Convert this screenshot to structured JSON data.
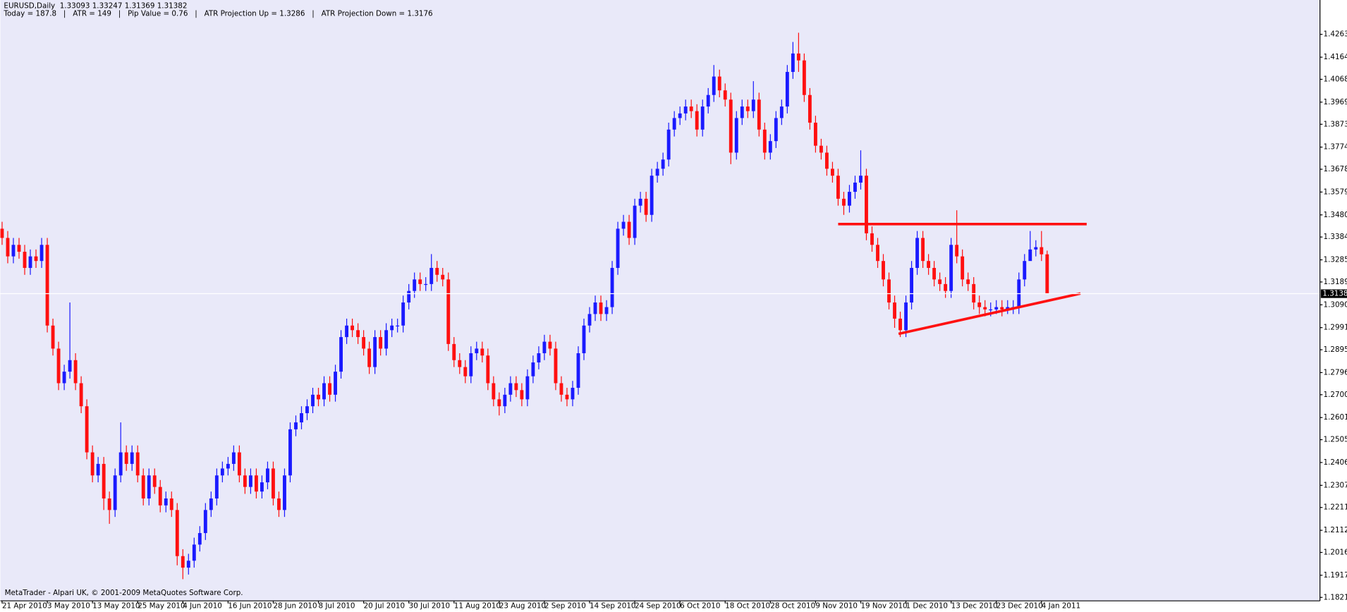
{
  "chart_data": {
    "type": "candlestick",
    "header": [
      "EURUSD,Daily  1.33093 1.33247 1.31369 1.31382",
      "Today = 187.8   |   ATR = 149   |   Pip Value = 0.76   |   ATR Projection Up = 1.3286   |   ATR Projection Down = 1.3176"
    ],
    "footer": "MetaTrader - Alpari UK, © 2001-2009 MetaQuotes Software Corp.",
    "up_color": "#1a1aff",
    "down_color": "#ff1010",
    "background": "#e9e9f9",
    "xlim": [
      -0.3,
      233.3
    ],
    "ylim": [
      1.1806,
      1.4412
    ],
    "yticks": [
      {
        "value": 1.4263,
        "label": "1.42630"
      },
      {
        "value": 1.4164,
        "label": "1.41640"
      },
      {
        "value": 1.4068,
        "label": "1.40680"
      },
      {
        "value": 1.3969,
        "label": "1.39690"
      },
      {
        "value": 1.3873,
        "label": "1.38730"
      },
      {
        "value": 1.3774,
        "label": "1.37740"
      },
      {
        "value": 1.3678,
        "label": "1.36780"
      },
      {
        "value": 1.3579,
        "label": "1.35790"
      },
      {
        "value": 1.348,
        "label": "1.34800"
      },
      {
        "value": 1.3384,
        "label": "1.33840"
      },
      {
        "value": 1.3285,
        "label": "1.32850"
      },
      {
        "value": 1.3189,
        "label": "1.31890"
      },
      {
        "value": 1.309,
        "label": "1.30900"
      },
      {
        "value": 1.2991,
        "label": "1.29910"
      },
      {
        "value": 1.2895,
        "label": "1.28950"
      },
      {
        "value": 1.2796,
        "label": "1.27960"
      },
      {
        "value": 1.27,
        "label": "1.27000"
      },
      {
        "value": 1.2601,
        "label": "1.26010"
      },
      {
        "value": 1.2505,
        "label": "1.25050"
      },
      {
        "value": 1.2406,
        "label": "1.24060"
      },
      {
        "value": 1.2307,
        "label": "1.23070"
      },
      {
        "value": 1.2211,
        "label": "1.22110"
      },
      {
        "value": 1.2112,
        "label": "1.21120"
      },
      {
        "value": 1.2016,
        "label": "1.20160"
      },
      {
        "value": 1.1917,
        "label": "1.19170"
      },
      {
        "value": 1.1821,
        "label": "1.18210"
      }
    ],
    "last_price": {
      "value": 1.31382,
      "label": "1.31382",
      "color": "#000000"
    },
    "trendlines": [
      {
        "color": "#ff1010",
        "x": [
          148,
          192
        ],
        "y": [
          1.344,
          1.344
        ]
      },
      {
        "color": "#ff1010",
        "x": [
          158.7,
          190.9
        ],
        "y": [
          1.2964,
          1.3139
        ]
      }
    ],
    "categories": [
      "21 Apr 2010",
      null,
      null,
      null,
      null,
      null,
      null,
      null,
      "3 May 2010",
      null,
      null,
      null,
      null,
      null,
      null,
      null,
      "13 May 2010",
      null,
      null,
      null,
      null,
      null,
      null,
      null,
      "25 May 2010",
      null,
      null,
      null,
      null,
      null,
      null,
      null,
      "4 Jun 2010",
      null,
      null,
      null,
      null,
      null,
      null,
      null,
      "16 Jun 2010",
      null,
      null,
      null,
      null,
      null,
      null,
      null,
      "28 Jun 2010",
      null,
      null,
      null,
      null,
      null,
      null,
      null,
      "8 Jul 2010",
      null,
      null,
      null,
      null,
      null,
      null,
      null,
      "20 Jul 2010",
      null,
      null,
      null,
      null,
      null,
      null,
      null,
      "30 Jul 2010",
      null,
      null,
      null,
      null,
      null,
      null,
      null,
      "11 Aug 2010",
      null,
      null,
      null,
      null,
      null,
      null,
      null,
      "23 Aug 2010",
      null,
      null,
      null,
      null,
      null,
      null,
      null,
      "2 Sep 2010",
      null,
      null,
      null,
      null,
      null,
      null,
      null,
      "14 Sep 2010",
      null,
      null,
      null,
      null,
      null,
      null,
      null,
      "24 Sep 2010",
      null,
      null,
      null,
      null,
      null,
      null,
      null,
      "6 Oct 2010",
      null,
      null,
      null,
      null,
      null,
      null,
      null,
      "18 Oct 2010",
      null,
      null,
      null,
      null,
      null,
      null,
      null,
      "28 Oct 2010",
      null,
      null,
      null,
      null,
      null,
      null,
      null,
      "9 Nov 2010",
      null,
      null,
      null,
      null,
      null,
      null,
      null,
      "19 Nov 2010",
      null,
      null,
      null,
      null,
      null,
      null,
      null,
      "1 Dec 2010",
      null,
      null,
      null,
      null,
      null,
      null,
      null,
      "13 Dec 2010",
      null,
      null,
      null,
      null,
      null,
      null,
      null,
      "23 Dec 2010",
      null,
      null,
      null,
      null,
      null,
      null,
      null,
      "4 Jan 2011",
      null
    ],
    "ohlc": [
      [
        1.342,
        1.345,
        1.335,
        1.338
      ],
      [
        1.338,
        1.341,
        1.327,
        1.33
      ],
      [
        1.33,
        1.338,
        1.327,
        1.335
      ],
      [
        1.335,
        1.338,
        1.329,
        1.332
      ],
      [
        1.332,
        1.335,
        1.322,
        1.325
      ],
      [
        1.325,
        1.333,
        1.322,
        1.33
      ],
      [
        1.33,
        1.333,
        1.325,
        1.328
      ],
      [
        1.328,
        1.338,
        1.325,
        1.335
      ],
      [
        1.335,
        1.338,
        1.297,
        1.3
      ],
      [
        1.3,
        1.303,
        1.287,
        1.29
      ],
      [
        1.29,
        1.293,
        1.272,
        1.275
      ],
      [
        1.275,
        1.283,
        1.272,
        1.28
      ],
      [
        1.28,
        1.31,
        1.277,
        1.285
      ],
      [
        1.285,
        1.288,
        1.272,
        1.275
      ],
      [
        1.275,
        1.278,
        1.262,
        1.265
      ],
      [
        1.265,
        1.268,
        1.242,
        1.245
      ],
      [
        1.245,
        1.248,
        1.232,
        1.235
      ],
      [
        1.235,
        1.243,
        1.232,
        1.24
      ],
      [
        1.24,
        1.243,
        1.22,
        1.225
      ],
      [
        1.225,
        1.228,
        1.214,
        1.22
      ],
      [
        1.22,
        1.238,
        1.217,
        1.235
      ],
      [
        1.235,
        1.258,
        1.232,
        1.245
      ],
      [
        1.245,
        1.248,
        1.237,
        1.24
      ],
      [
        1.24,
        1.248,
        1.237,
        1.245
      ],
      [
        1.245,
        1.248,
        1.232,
        1.235
      ],
      [
        1.235,
        1.238,
        1.222,
        1.225
      ],
      [
        1.225,
        1.238,
        1.222,
        1.235
      ],
      [
        1.235,
        1.238,
        1.227,
        1.23
      ],
      [
        1.23,
        1.233,
        1.219,
        1.222
      ],
      [
        1.222,
        1.228,
        1.219,
        1.225
      ],
      [
        1.225,
        1.228,
        1.217,
        1.22
      ],
      [
        1.22,
        1.223,
        1.196,
        1.2
      ],
      [
        1.2,
        1.203,
        1.19,
        1.195
      ],
      [
        1.195,
        1.201,
        1.192,
        1.198
      ],
      [
        1.198,
        1.208,
        1.195,
        1.205
      ],
      [
        1.205,
        1.213,
        1.202,
        1.21
      ],
      [
        1.21,
        1.223,
        1.207,
        1.22
      ],
      [
        1.22,
        1.228,
        1.217,
        1.225
      ],
      [
        1.225,
        1.238,
        1.222,
        1.235
      ],
      [
        1.235,
        1.241,
        1.232,
        1.238
      ],
      [
        1.238,
        1.243,
        1.235,
        1.24
      ],
      [
        1.24,
        1.248,
        1.237,
        1.245
      ],
      [
        1.245,
        1.248,
        1.232,
        1.235
      ],
      [
        1.235,
        1.238,
        1.227,
        1.23
      ],
      [
        1.23,
        1.238,
        1.227,
        1.235
      ],
      [
        1.235,
        1.238,
        1.225,
        1.228
      ],
      [
        1.228,
        1.235,
        1.225,
        1.232
      ],
      [
        1.232,
        1.241,
        1.229,
        1.238
      ],
      [
        1.238,
        1.241,
        1.222,
        1.225
      ],
      [
        1.225,
        1.228,
        1.217,
        1.22
      ],
      [
        1.22,
        1.238,
        1.217,
        1.235
      ],
      [
        1.235,
        1.258,
        1.232,
        1.255
      ],
      [
        1.255,
        1.261,
        1.252,
        1.258
      ],
      [
        1.258,
        1.265,
        1.255,
        1.262
      ],
      [
        1.262,
        1.268,
        1.259,
        1.265
      ],
      [
        1.265,
        1.273,
        1.262,
        1.27
      ],
      [
        1.27,
        1.273,
        1.265,
        1.268
      ],
      [
        1.268,
        1.278,
        1.265,
        1.275
      ],
      [
        1.275,
        1.278,
        1.267,
        1.27
      ],
      [
        1.27,
        1.283,
        1.267,
        1.28
      ],
      [
        1.28,
        1.298,
        1.277,
        1.295
      ],
      [
        1.295,
        1.303,
        1.292,
        1.3
      ],
      [
        1.3,
        1.303,
        1.295,
        1.298
      ],
      [
        1.298,
        1.301,
        1.292,
        1.295
      ],
      [
        1.295,
        1.298,
        1.287,
        1.29
      ],
      [
        1.29,
        1.293,
        1.279,
        1.282
      ],
      [
        1.282,
        1.298,
        1.279,
        1.295
      ],
      [
        1.295,
        1.298,
        1.287,
        1.29
      ],
      [
        1.29,
        1.301,
        1.287,
        1.298
      ],
      [
        1.298,
        1.303,
        1.295,
        1.3
      ],
      [
        1.3,
        1.303,
        1.297,
        1.3
      ],
      [
        1.3,
        1.313,
        1.297,
        1.31
      ],
      [
        1.31,
        1.318,
        1.307,
        1.315
      ],
      [
        1.315,
        1.323,
        1.312,
        1.32
      ],
      [
        1.32,
        1.323,
        1.315,
        1.318
      ],
      [
        1.318,
        1.321,
        1.315,
        1.318
      ],
      [
        1.318,
        1.331,
        1.315,
        1.325
      ],
      [
        1.325,
        1.328,
        1.319,
        1.322
      ],
      [
        1.322,
        1.325,
        1.317,
        1.32
      ],
      [
        1.32,
        1.323,
        1.289,
        1.292
      ],
      [
        1.292,
        1.295,
        1.282,
        1.285
      ],
      [
        1.285,
        1.288,
        1.279,
        1.282
      ],
      [
        1.282,
        1.285,
        1.275,
        1.278
      ],
      [
        1.278,
        1.291,
        1.275,
        1.288
      ],
      [
        1.288,
        1.293,
        1.285,
        1.29
      ],
      [
        1.29,
        1.293,
        1.284,
        1.287
      ],
      [
        1.287,
        1.29,
        1.272,
        1.275
      ],
      [
        1.275,
        1.278,
        1.265,
        1.268
      ],
      [
        1.268,
        1.271,
        1.261,
        1.265
      ],
      [
        1.265,
        1.273,
        1.262,
        1.27
      ],
      [
        1.27,
        1.278,
        1.267,
        1.275
      ],
      [
        1.275,
        1.278,
        1.269,
        1.272
      ],
      [
        1.272,
        1.275,
        1.265,
        1.268
      ],
      [
        1.268,
        1.281,
        1.265,
        1.278
      ],
      [
        1.278,
        1.287,
        1.275,
        1.284
      ],
      [
        1.284,
        1.291,
        1.281,
        1.288
      ],
      [
        1.288,
        1.296,
        1.285,
        1.293
      ],
      [
        1.293,
        1.296,
        1.287,
        1.29
      ],
      [
        1.29,
        1.293,
        1.272,
        1.275
      ],
      [
        1.275,
        1.278,
        1.267,
        1.27
      ],
      [
        1.27,
        1.273,
        1.265,
        1.268
      ],
      [
        1.268,
        1.276,
        1.265,
        1.273
      ],
      [
        1.273,
        1.291,
        1.27,
        1.288
      ],
      [
        1.288,
        1.303,
        1.285,
        1.3
      ],
      [
        1.3,
        1.308,
        1.297,
        1.305
      ],
      [
        1.305,
        1.313,
        1.302,
        1.31
      ],
      [
        1.31,
        1.313,
        1.302,
        1.305
      ],
      [
        1.305,
        1.311,
        1.302,
        1.308
      ],
      [
        1.308,
        1.328,
        1.305,
        1.325
      ],
      [
        1.325,
        1.345,
        1.322,
        1.342
      ],
      [
        1.342,
        1.348,
        1.339,
        1.345
      ],
      [
        1.345,
        1.348,
        1.335,
        1.338
      ],
      [
        1.338,
        1.355,
        1.335,
        1.352
      ],
      [
        1.352,
        1.358,
        1.349,
        1.355
      ],
      [
        1.355,
        1.358,
        1.345,
        1.348
      ],
      [
        1.348,
        1.368,
        1.345,
        1.365
      ],
      [
        1.365,
        1.371,
        1.362,
        1.368
      ],
      [
        1.368,
        1.375,
        1.365,
        1.372
      ],
      [
        1.372,
        1.388,
        1.369,
        1.385
      ],
      [
        1.385,
        1.393,
        1.382,
        1.39
      ],
      [
        1.39,
        1.395,
        1.387,
        1.392
      ],
      [
        1.392,
        1.398,
        1.389,
        1.395
      ],
      [
        1.395,
        1.398,
        1.39,
        1.393
      ],
      [
        1.393,
        1.396,
        1.382,
        1.385
      ],
      [
        1.385,
        1.398,
        1.382,
        1.395
      ],
      [
        1.395,
        1.403,
        1.392,
        1.4
      ],
      [
        1.4,
        1.413,
        1.397,
        1.408
      ],
      [
        1.408,
        1.411,
        1.399,
        1.402
      ],
      [
        1.402,
        1.405,
        1.395,
        1.398
      ],
      [
        1.398,
        1.401,
        1.37,
        1.375
      ],
      [
        1.375,
        1.393,
        1.372,
        1.39
      ],
      [
        1.39,
        1.398,
        1.387,
        1.395
      ],
      [
        1.395,
        1.398,
        1.39,
        1.393
      ],
      [
        1.393,
        1.406,
        1.39,
        1.398
      ],
      [
        1.398,
        1.401,
        1.382,
        1.385
      ],
      [
        1.385,
        1.388,
        1.372,
        1.375
      ],
      [
        1.375,
        1.383,
        1.372,
        1.38
      ],
      [
        1.38,
        1.393,
        1.377,
        1.39
      ],
      [
        1.39,
        1.398,
        1.387,
        1.395
      ],
      [
        1.395,
        1.413,
        1.392,
        1.41
      ],
      [
        1.41,
        1.423,
        1.407,
        1.418
      ],
      [
        1.418,
        1.427,
        1.41,
        1.415
      ],
      [
        1.415,
        1.418,
        1.397,
        1.4
      ],
      [
        1.4,
        1.403,
        1.385,
        1.388
      ],
      [
        1.388,
        1.391,
        1.375,
        1.378
      ],
      [
        1.378,
        1.381,
        1.372,
        1.375
      ],
      [
        1.375,
        1.378,
        1.365,
        1.368
      ],
      [
        1.368,
        1.371,
        1.362,
        1.365
      ],
      [
        1.365,
        1.368,
        1.352,
        1.355
      ],
      [
        1.355,
        1.358,
        1.348,
        1.352
      ],
      [
        1.352,
        1.361,
        1.349,
        1.358
      ],
      [
        1.358,
        1.365,
        1.355,
        1.362
      ],
      [
        1.362,
        1.376,
        1.359,
        1.365
      ],
      [
        1.365,
        1.368,
        1.337,
        1.34
      ],
      [
        1.34,
        1.343,
        1.332,
        1.335
      ],
      [
        1.335,
        1.338,
        1.325,
        1.328
      ],
      [
        1.328,
        1.331,
        1.317,
        1.32
      ],
      [
        1.32,
        1.323,
        1.307,
        1.31
      ],
      [
        1.31,
        1.313,
        1.299,
        1.303
      ],
      [
        1.303,
        1.306,
        1.295,
        1.298
      ],
      [
        1.298,
        1.313,
        1.295,
        1.31
      ],
      [
        1.31,
        1.328,
        1.307,
        1.325
      ],
      [
        1.325,
        1.341,
        1.322,
        1.338
      ],
      [
        1.338,
        1.341,
        1.325,
        1.328
      ],
      [
        1.328,
        1.331,
        1.322,
        1.325
      ],
      [
        1.325,
        1.328,
        1.317,
        1.32
      ],
      [
        1.32,
        1.323,
        1.315,
        1.318
      ],
      [
        1.318,
        1.321,
        1.312,
        1.315
      ],
      [
        1.315,
        1.338,
        1.312,
        1.335
      ],
      [
        1.335,
        1.35,
        1.327,
        1.33
      ],
      [
        1.33,
        1.333,
        1.317,
        1.32
      ],
      [
        1.32,
        1.323,
        1.315,
        1.318
      ],
      [
        1.318,
        1.321,
        1.307,
        1.31
      ],
      [
        1.31,
        1.313,
        1.305,
        1.308
      ],
      [
        1.308,
        1.311,
        1.304,
        1.307
      ],
      [
        1.307,
        1.31,
        1.304,
        1.307
      ],
      [
        1.307,
        1.311,
        1.305,
        1.308
      ],
      [
        1.308,
        1.311,
        1.304,
        1.307
      ],
      [
        1.307,
        1.311,
        1.305,
        1.308
      ],
      [
        1.308,
        1.311,
        1.305,
        1.308
      ],
      [
        1.308,
        1.323,
        1.305,
        1.32
      ],
      [
        1.32,
        1.331,
        1.317,
        1.328
      ],
      [
        1.328,
        1.341,
        1.33,
        1.333
      ],
      [
        1.333,
        1.337,
        1.33,
        1.334
      ],
      [
        1.334,
        1.341,
        1.328,
        1.3309
      ],
      [
        1.3309,
        1.3325,
        1.3137,
        1.3138
      ]
    ]
  }
}
